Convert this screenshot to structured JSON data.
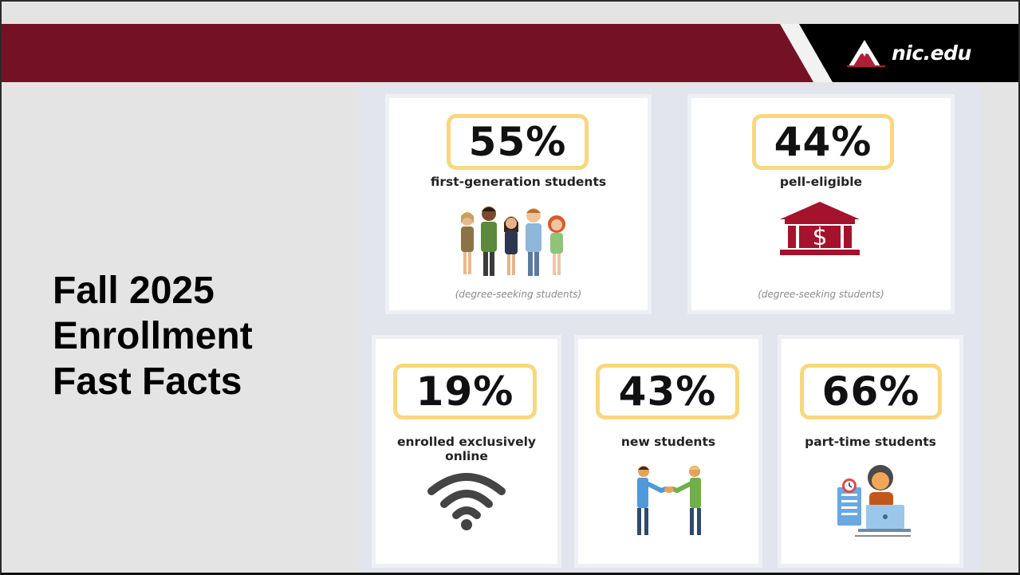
{
  "brand": {
    "logo_text": "nic.edu",
    "accent": "#751124",
    "highlight": "#f8d77e"
  },
  "headline": {
    "line1": "Fall 2025",
    "line2": "Enrollment",
    "line3": "Fast Facts"
  },
  "facts": [
    {
      "percent": "55%",
      "label": "first-generation students",
      "note": "(degree-seeking students)",
      "icon": "people-group-icon"
    },
    {
      "percent": "44%",
      "label": "pell-eligible",
      "note": "(degree-seeking students)",
      "icon": "bank-dollar-icon"
    },
    {
      "percent": "19%",
      "label": "enrolled exclusively online",
      "icon": "wifi-icon"
    },
    {
      "percent": "43%",
      "label": "new students",
      "icon": "handshake-icon"
    },
    {
      "percent": "66%",
      "label": "part-time students",
      "icon": "part-time-worker-icon"
    }
  ]
}
